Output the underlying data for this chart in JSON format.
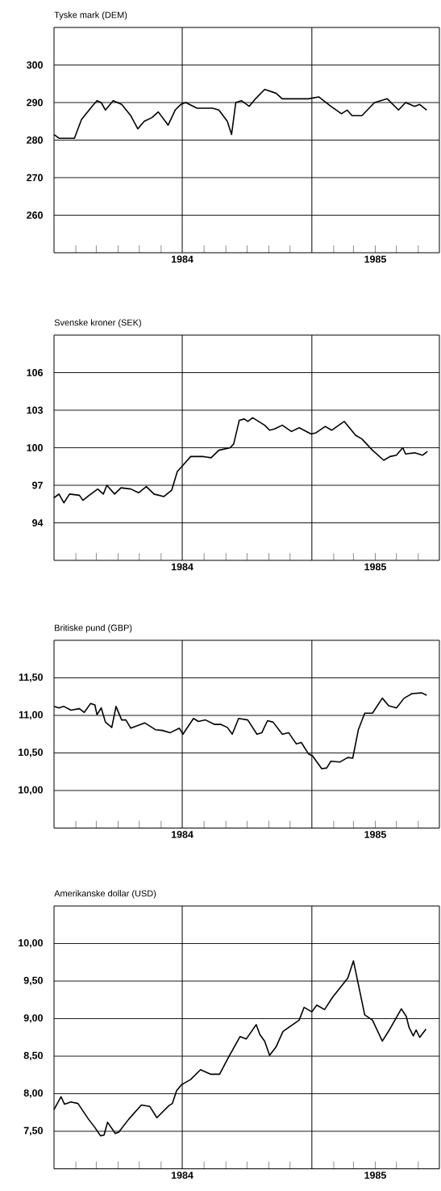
{
  "chart_data": [
    {
      "type": "line",
      "title": "Tyske mark (DEM)",
      "grid": "y",
      "line_style": "solid",
      "xlim": [
        "1984-01-01",
        "1985-07-01"
      ],
      "xticks": [
        {
          "value": "1984-02-01",
          "label": null
        },
        {
          "value": "1984-03-01",
          "label": null
        },
        {
          "value": "1984-04-01",
          "label": null
        },
        {
          "value": "1984-05-01",
          "label": null
        },
        {
          "value": "1984-06-01",
          "label": null
        },
        {
          "value": "1984-08-01",
          "label": null
        },
        {
          "value": "1984-09-01",
          "label": null
        },
        {
          "value": "1984-10-01",
          "label": null
        },
        {
          "value": "1984-11-01",
          "label": null
        },
        {
          "value": "1984-12-01",
          "label": null
        },
        {
          "value": "1985-02-01",
          "label": null
        },
        {
          "value": "1985-03-01",
          "label": null
        },
        {
          "value": "1985-04-01",
          "label": null
        },
        {
          "value": "1985-05-01",
          "label": null
        },
        {
          "value": "1985-06-01",
          "label": null
        },
        {
          "value": "1984-07-01",
          "label": "1984"
        },
        {
          "value": "1985-04-01",
          "label": "1985"
        }
      ],
      "ylim": [
        250,
        310
      ],
      "yticks": [
        260,
        270,
        280,
        290,
        300
      ],
      "ref_lines": [
        {
          "axis": "x",
          "value": "1984-07-01",
          "label": null,
          "color": "#000000"
        },
        {
          "axis": "x",
          "value": "1985-01-01",
          "label": null,
          "color": "#000000"
        }
      ],
      "series": [
        {
          "color": "#000000",
          "x": [
            "1984-01-01",
            "1984-01-08",
            "1984-01-30",
            "1984-02-09",
            "1984-02-24",
            "1984-03-02",
            "1984-03-08",
            "1984-03-14",
            "1984-03-25",
            "1984-04-06",
            "1984-04-19",
            "1984-04-29",
            "1984-05-08",
            "1984-05-19",
            "1984-05-28",
            "1984-06-11",
            "1984-06-21",
            "1984-06-29",
            "1984-07-06",
            "1984-07-22",
            "1984-08-13",
            "1984-08-22",
            "1984-09-03",
            "1984-09-09",
            "1984-09-15",
            "1984-09-23",
            "1984-10-04",
            "1984-10-13",
            "1984-10-26",
            "1984-11-11",
            "1984-11-20",
            "1984-12-06",
            "1984-12-27",
            "1985-01-11",
            "1985-01-28",
            "1985-02-12",
            "1985-02-20",
            "1985-02-27",
            "1985-03-13",
            "1985-03-31",
            "1985-04-18",
            "1985-05-04",
            "1985-05-14",
            "1985-05-27",
            "1985-06-03",
            "1985-06-13"
          ],
          "values": [
            281.5,
            280.5,
            280.5,
            285.5,
            289,
            290.5,
            290,
            288,
            290.5,
            289.5,
            286.5,
            283,
            285,
            286,
            287.5,
            284,
            288,
            289.5,
            290,
            288.5,
            288.5,
            288,
            285,
            281.5,
            290,
            290.5,
            289,
            291,
            293.5,
            292.5,
            291,
            291,
            291,
            291.5,
            289,
            287,
            288,
            286.5,
            286.5,
            290,
            291,
            288,
            290,
            289,
            289.5,
            288
          ]
        }
      ]
    },
    {
      "type": "line",
      "title": "Svenske kroner (SEK)",
      "grid": "y",
      "line_style": "solid",
      "xlim": [
        "1984-01-01",
        "1985-07-01"
      ],
      "xticks": [
        {
          "value": "1984-02-01",
          "label": null
        },
        {
          "value": "1984-03-01",
          "label": null
        },
        {
          "value": "1984-04-01",
          "label": null
        },
        {
          "value": "1984-05-01",
          "label": null
        },
        {
          "value": "1984-06-01",
          "label": null
        },
        {
          "value": "1984-08-01",
          "label": null
        },
        {
          "value": "1984-09-01",
          "label": null
        },
        {
          "value": "1984-10-01",
          "label": null
        },
        {
          "value": "1984-11-01",
          "label": null
        },
        {
          "value": "1984-12-01",
          "label": null
        },
        {
          "value": "1985-02-01",
          "label": null
        },
        {
          "value": "1985-03-01",
          "label": null
        },
        {
          "value": "1985-04-01",
          "label": null
        },
        {
          "value": "1985-05-01",
          "label": null
        },
        {
          "value": "1985-06-01",
          "label": null
        },
        {
          "value": "1984-07-01",
          "label": "1984"
        },
        {
          "value": "1985-04-01",
          "label": "1985"
        }
      ],
      "ylim": [
        91,
        109
      ],
      "yticks": [
        94,
        97,
        100,
        103,
        106
      ],
      "ref_lines": [
        {
          "axis": "x",
          "value": "1984-07-01",
          "label": null,
          "color": "#000000"
        },
        {
          "axis": "x",
          "value": "1985-01-01",
          "label": null,
          "color": "#000000"
        }
      ],
      "series": [
        {
          "color": "#000000",
          "x": [
            "1984-01-01",
            "1984-01-08",
            "1984-01-15",
            "1984-01-23",
            "1984-02-06",
            "1984-02-11",
            "1984-02-20",
            "1984-03-03",
            "1984-03-11",
            "1984-03-16",
            "1984-03-27",
            "1984-04-05",
            "1984-04-19",
            "1984-04-30",
            "1984-05-11",
            "1984-05-22",
            "1984-06-05",
            "1984-06-16",
            "1984-06-24",
            "1984-07-02",
            "1984-07-13",
            "1984-07-30",
            "1984-08-11",
            "1984-08-22",
            "1984-09-07",
            "1984-09-12",
            "1984-09-20",
            "1984-09-27",
            "1984-10-02",
            "1984-10-09",
            "1984-10-26",
            "1984-11-02",
            "1984-11-09",
            "1984-11-20",
            "1984-12-03",
            "1984-12-14",
            "1984-12-31",
            "1985-01-07",
            "1985-01-20",
            "1985-01-29",
            "1985-02-16",
            "1985-03-04",
            "1985-03-13",
            "1985-03-28",
            "1985-04-13",
            "1985-04-22",
            "1985-05-01",
            "1985-05-10",
            "1985-05-14",
            "1985-05-27",
            "1985-06-07",
            "1985-06-14"
          ],
          "values": [
            96.0,
            96.3,
            95.6,
            96.3,
            96.2,
            95.8,
            96.2,
            96.7,
            96.3,
            97.0,
            96.3,
            96.8,
            96.7,
            96.4,
            96.9,
            96.3,
            96.1,
            96.6,
            98.1,
            98.6,
            99.3,
            99.3,
            99.2,
            99.8,
            100.0,
            100.3,
            102.2,
            102.3,
            102.1,
            102.4,
            101.8,
            101.4,
            101.5,
            101.8,
            101.3,
            101.6,
            101.1,
            101.2,
            101.7,
            101.4,
            102.1,
            101.0,
            100.7,
            99.8,
            99.0,
            99.3,
            99.4,
            100.0,
            99.5,
            99.6,
            99.4,
            99.7
          ]
        }
      ]
    },
    {
      "type": "line",
      "title": "Britiske pund (GBP)",
      "grid": "y",
      "line_style": "solid",
      "xlim": [
        "1984-01-01",
        "1985-07-01"
      ],
      "xticks": [
        {
          "value": "1984-02-01",
          "label": null
        },
        {
          "value": "1984-03-01",
          "label": null
        },
        {
          "value": "1984-04-01",
          "label": null
        },
        {
          "value": "1984-05-01",
          "label": null
        },
        {
          "value": "1984-06-01",
          "label": null
        },
        {
          "value": "1984-08-01",
          "label": null
        },
        {
          "value": "1984-09-01",
          "label": null
        },
        {
          "value": "1984-10-01",
          "label": null
        },
        {
          "value": "1984-11-01",
          "label": null
        },
        {
          "value": "1984-12-01",
          "label": null
        },
        {
          "value": "1985-02-01",
          "label": null
        },
        {
          "value": "1985-03-01",
          "label": null
        },
        {
          "value": "1985-04-01",
          "label": null
        },
        {
          "value": "1985-05-01",
          "label": null
        },
        {
          "value": "1985-06-01",
          "label": null
        },
        {
          "value": "1984-07-01",
          "label": "1984"
        },
        {
          "value": "1985-04-01",
          "label": "1985"
        }
      ],
      "ylim": [
        9.5,
        12.0
      ],
      "yticks": [
        {
          "value": 10.0,
          "label": "10,00"
        },
        {
          "value": 10.5,
          "label": "10,50"
        },
        {
          "value": 11.0,
          "label": "11,00"
        },
        {
          "value": 11.5,
          "label": "11,50"
        }
      ],
      "ref_lines": [
        {
          "axis": "x",
          "value": "1984-07-01",
          "label": null,
          "color": "#000000"
        },
        {
          "axis": "x",
          "value": "1985-01-01",
          "label": null,
          "color": "#000000"
        }
      ],
      "series": [
        {
          "color": "#000000",
          "x": [
            "1984-01-01",
            "1984-01-08",
            "1984-01-15",
            "1984-01-25",
            "1984-02-06",
            "1984-02-13",
            "1984-02-22",
            "1984-02-28",
            "1984-03-02",
            "1984-03-08",
            "1984-03-14",
            "1984-03-23",
            "1984-03-29",
            "1984-04-06",
            "1984-04-12",
            "1984-04-19",
            "1984-05-09",
            "1984-05-24",
            "1984-06-03",
            "1984-06-14",
            "1984-06-27",
            "1984-07-02",
            "1984-07-17",
            "1984-07-24",
            "1984-08-03",
            "1984-08-16",
            "1984-08-25",
            "1984-09-03",
            "1984-09-10",
            "1984-09-19",
            "1984-10-02",
            "1984-10-15",
            "1984-10-22",
            "1984-10-30",
            "1984-11-07",
            "1984-11-20",
            "1984-11-29",
            "1984-12-10",
            "1984-12-17",
            "1984-12-27",
            "1985-01-02",
            "1985-01-15",
            "1985-01-22",
            "1985-01-28",
            "1985-02-10",
            "1985-02-21",
            "1985-02-28",
            "1985-03-08",
            "1985-03-17",
            "1985-03-28",
            "1985-04-11",
            "1985-04-20",
            "1985-05-01",
            "1985-05-12",
            "1985-05-23",
            "1985-06-06",
            "1985-06-13"
          ],
          "values": [
            11.12,
            11.1,
            11.12,
            11.07,
            11.09,
            11.04,
            11.16,
            11.14,
            11.01,
            11.1,
            10.91,
            10.84,
            11.12,
            10.94,
            10.94,
            10.83,
            10.9,
            10.81,
            10.8,
            10.77,
            10.83,
            10.75,
            10.96,
            10.92,
            10.94,
            10.88,
            10.88,
            10.84,
            10.75,
            10.96,
            10.94,
            10.75,
            10.77,
            10.93,
            10.91,
            10.75,
            10.77,
            10.62,
            10.64,
            10.49,
            10.46,
            10.29,
            10.3,
            10.39,
            10.38,
            10.44,
            10.43,
            10.81,
            11.03,
            11.03,
            11.23,
            11.13,
            11.1,
            11.23,
            11.29,
            11.3,
            11.27
          ]
        }
      ]
    },
    {
      "type": "line",
      "title": "Amerikanske dollar (USD)",
      "grid": "y",
      "line_style": "solid",
      "xlim": [
        "1984-01-01",
        "1985-07-01"
      ],
      "xticks": [
        {
          "value": "1984-02-01",
          "label": null
        },
        {
          "value": "1984-03-01",
          "label": null
        },
        {
          "value": "1984-04-01",
          "label": null
        },
        {
          "value": "1984-05-01",
          "label": null
        },
        {
          "value": "1984-06-01",
          "label": null
        },
        {
          "value": "1984-08-01",
          "label": null
        },
        {
          "value": "1984-09-01",
          "label": null
        },
        {
          "value": "1984-10-01",
          "label": null
        },
        {
          "value": "1984-11-01",
          "label": null
        },
        {
          "value": "1984-12-01",
          "label": null
        },
        {
          "value": "1985-02-01",
          "label": null
        },
        {
          "value": "1985-03-01",
          "label": null
        },
        {
          "value": "1985-04-01",
          "label": null
        },
        {
          "value": "1985-05-01",
          "label": null
        },
        {
          "value": "1985-06-01",
          "label": null
        },
        {
          "value": "1984-07-01",
          "label": "1984"
        },
        {
          "value": "1985-04-01",
          "label": "1985"
        }
      ],
      "ylim": [
        7.0,
        10.5
      ],
      "yticks": [
        {
          "value": 7.5,
          "label": "7,50"
        },
        {
          "value": 8.0,
          "label": "8,00"
        },
        {
          "value": 8.5,
          "label": "8,50"
        },
        {
          "value": 9.0,
          "label": "9,00"
        },
        {
          "value": 9.5,
          "label": "9,50"
        },
        {
          "value": 10.0,
          "label": "10,00"
        }
      ],
      "ref_lines": [
        {
          "axis": "x",
          "value": "1984-07-01",
          "label": null,
          "color": "#000000"
        },
        {
          "axis": "x",
          "value": "1985-01-01",
          "label": null,
          "color": "#000000"
        }
      ],
      "series": [
        {
          "color": "#000000",
          "x": [
            "1984-01-01",
            "1984-01-11",
            "1984-01-16",
            "1984-01-25",
            "1984-02-04",
            "1984-02-19",
            "1984-02-28",
            "1984-03-07",
            "1984-03-12",
            "1984-03-17",
            "1984-03-28",
            "1984-04-02",
            "1984-04-16",
            "1984-05-04",
            "1984-05-16",
            "1984-05-26",
            "1984-06-12",
            "1984-06-17",
            "1984-06-23",
            "1984-06-30",
            "1984-07-13",
            "1984-07-27",
            "1984-08-10",
            "1984-08-23",
            "1984-09-05",
            "1984-09-21",
            "1984-09-30",
            "1984-10-14",
            "1984-10-19",
            "1984-10-26",
            "1984-11-02",
            "1984-11-11",
            "1984-11-21",
            "1984-12-14",
            "1984-12-21",
            "1985-01-01",
            "1985-01-08",
            "1985-01-19",
            "1985-01-30",
            "1985-02-21",
            "1985-03-01",
            "1985-03-17",
            "1985-03-28",
            "1985-04-11",
            "1985-04-21",
            "1985-05-08",
            "1985-05-15",
            "1985-05-19",
            "1985-05-25",
            "1985-05-29",
            "1985-06-03",
            "1985-06-12"
          ],
          "values": [
            7.79,
            7.96,
            7.86,
            7.89,
            7.87,
            7.66,
            7.55,
            7.44,
            7.45,
            7.62,
            7.47,
            7.49,
            7.66,
            7.85,
            7.83,
            7.68,
            7.84,
            7.87,
            8.04,
            8.12,
            8.19,
            8.32,
            8.26,
            8.26,
            8.49,
            8.76,
            8.73,
            8.92,
            8.79,
            8.7,
            8.51,
            8.62,
            8.83,
            8.98,
            9.15,
            9.09,
            9.18,
            9.12,
            9.28,
            9.54,
            9.77,
            9.05,
            8.98,
            8.7,
            8.85,
            9.13,
            9.03,
            8.88,
            8.77,
            8.85,
            8.75,
            8.86
          ]
        }
      ]
    }
  ]
}
